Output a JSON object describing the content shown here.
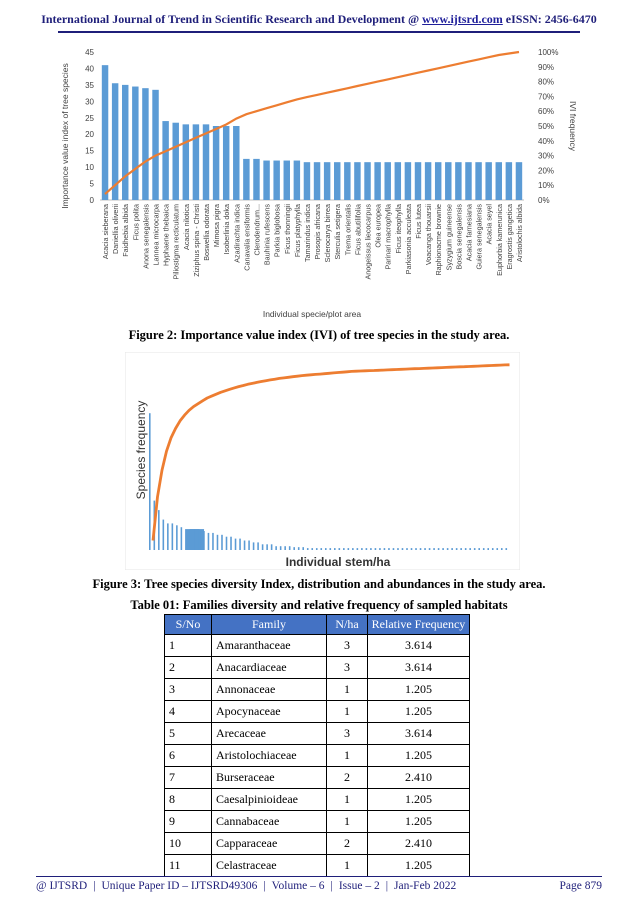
{
  "header": {
    "journal": "International Journal of Trend in Scientific Research and Development @",
    "website": "www.ijtsrd.com",
    "issn": "eISSN: 2456-6470"
  },
  "figure2": {
    "caption": "Figure 2: Importance value index (IVI) of tree species in the study area.",
    "chart_data": {
      "type": "bar",
      "title": "",
      "xlabel": "Individual specie/plot area",
      "ylabel": "Importance value index of tree species",
      "y2label": "IVI frequency",
      "ylim": [
        0,
        45
      ],
      "yticks": [
        "0",
        "5",
        "10",
        "15",
        "20",
        "25",
        "30",
        "35",
        "40",
        "45"
      ],
      "y2lim": [
        0,
        100
      ],
      "y2ticks": [
        "0%",
        "10%",
        "20%",
        "30%",
        "40%",
        "50%",
        "60%",
        "70%",
        "80%",
        "90%",
        "100%"
      ],
      "categories": [
        "Acacia sieberana",
        "Daniellia oliverii",
        "Faidhebia albida",
        "Ficus polita",
        "Anona senegalensis",
        "Lannea microcarpa",
        "Hyphaene thebaica",
        "Piliostigma recticulatum",
        "Acacia nilotica",
        "Ziziphus spina - Christi",
        "Boswellia odorata",
        "Mimosa pigra",
        "Isoberlinia doka",
        "Azadirachta indica",
        "Canavalia ensiformis",
        "Clerodendrum...",
        "Bauhinia rufescens",
        "Parkia biglobosa",
        "Ficus thonningii",
        "Ficus platyphylla",
        "Tamarindus indica",
        "Prosopis africana",
        "Sclerocarya birrea",
        "Sterculia setigera",
        "Trema orientalis",
        "Ficus abutilifolia",
        "Anogeissus liecocarpus",
        "Olea europea",
        "Parinari macrophylla",
        "Ficus iteophylla",
        "Parkiasonia acculeata",
        "Ficus lutea",
        "Voacanga thouarsii",
        "Raphionacme brownie",
        "Syzygium guineense",
        "Boscia senegalensis",
        "Acacia farnesiana",
        "Guiera senegalensis",
        "Acacia seyel",
        "Euphorbia kamerunica",
        "Eragrostis gangetica",
        "Aristolochis albida"
      ],
      "series": [
        {
          "type": "bar",
          "color": "#5b9bd5",
          "values": [
            41,
            35.5,
            35,
            34.5,
            34,
            33.5,
            24,
            23.5,
            23,
            23,
            23,
            22.5,
            22.5,
            22.5,
            12.5,
            12.5,
            12,
            12,
            12,
            12,
            11.5,
            11.5,
            11.5,
            11.5,
            11.5,
            11.5,
            11.5,
            11.5,
            11.5,
            11.5,
            11.5,
            11.5,
            11.5,
            11.5,
            11.5,
            11.5,
            11.5,
            11.5,
            11.5,
            11.5,
            11.5,
            11.5
          ]
        },
        {
          "type": "line",
          "axis": "right",
          "color": "#ed7d31",
          "values": [
            4,
            10,
            16,
            21,
            26,
            30,
            33,
            36,
            39,
            42,
            45,
            48,
            51,
            55,
            58,
            60,
            62,
            64,
            66,
            68,
            69.5,
            71,
            72.5,
            74,
            75.5,
            77,
            78.5,
            80,
            81.5,
            83,
            84.5,
            86,
            87.5,
            89,
            90.5,
            92,
            93.5,
            95,
            96.5,
            98,
            99,
            100
          ]
        }
      ]
    }
  },
  "figure3": {
    "caption": "Figure 3: Tree species diversity Index, distribution and abundances in the study area.",
    "chart_data": {
      "type": "bar",
      "title": "",
      "xlabel": "Individual stem/ha",
      "ylabel": "Species frequency",
      "ylim": [
        0,
        100
      ],
      "series": [
        {
          "type": "bar",
          "color": "#5b9bd5",
          "values": [
            72,
            26,
            21,
            16,
            14,
            14,
            13,
            12,
            11,
            11,
            11,
            10,
            10,
            9,
            9,
            8,
            8,
            7,
            7,
            6,
            6,
            5,
            5,
            4,
            4,
            3,
            3,
            3,
            2,
            2,
            2,
            2,
            1.5,
            1.5,
            1.5,
            1,
            1,
            1,
            1,
            1,
            1,
            1,
            1,
            1,
            1,
            1,
            1,
            1,
            1,
            1,
            1,
            1,
            1,
            1,
            1,
            1,
            1,
            1,
            1,
            1,
            1,
            1,
            1,
            1,
            1,
            1,
            1,
            1,
            1,
            1,
            1,
            1,
            1,
            1,
            1,
            1,
            1,
            1,
            1,
            1
          ]
        },
        {
          "type": "line",
          "color": "#ed7d31",
          "values": [
            5,
            28,
            42,
            52,
            59,
            64,
            68,
            71,
            73.5,
            75.5,
            77,
            78.5,
            80,
            81,
            82,
            83,
            83.8,
            84.6,
            85.3,
            86,
            86.6,
            87.2,
            87.7,
            88.2,
            88.7,
            89.1,
            89.5,
            89.9,
            90.3,
            90.6,
            90.9,
            91.2,
            91.5,
            91.8,
            92,
            92.2,
            92.4,
            92.6,
            92.8,
            93,
            93.2,
            93.4,
            93.6,
            93.8,
            94,
            94.1,
            94.2,
            94.3,
            94.4,
            94.5,
            94.6,
            94.7,
            94.8,
            94.9,
            95,
            95.1,
            95.2,
            95.3,
            95.4,
            95.5,
            95.6,
            95.7,
            95.8,
            95.9,
            96,
            96.1,
            96.2,
            96.3,
            96.4,
            96.5,
            96.6,
            96.7,
            96.8,
            96.9,
            97,
            97.1,
            97.2,
            97.3,
            97.4,
            97.5
          ]
        }
      ]
    }
  },
  "table": {
    "caption": "Table 01: Families diversity and relative frequency of sampled habitats",
    "headers": [
      "S/No",
      "Family",
      "N/ha",
      "Relative Frequency"
    ],
    "rows": [
      [
        "1",
        "Amaranthaceae",
        "3",
        "3.614"
      ],
      [
        "2",
        "Anacardiaceae",
        "3",
        "3.614"
      ],
      [
        "3",
        "Annonaceae",
        "1",
        "1.205"
      ],
      [
        "4",
        "Apocynaceae",
        "1",
        "1.205"
      ],
      [
        "5",
        "Arecaceae",
        "3",
        "3.614"
      ],
      [
        "6",
        "Aristolochiaceae",
        "1",
        "1.205"
      ],
      [
        "7",
        "Burseraceae",
        "2",
        "2.410"
      ],
      [
        "8",
        "Caesalpinioideae",
        "1",
        "1.205"
      ],
      [
        "9",
        "Cannabaceae",
        "1",
        "1.205"
      ],
      [
        "10",
        "Capparaceae",
        "2",
        "2.410"
      ],
      [
        "11",
        "Celastraceae",
        "1",
        "1.205"
      ]
    ]
  },
  "footer": {
    "journal": "@ IJTSRD",
    "id": "Unique Paper ID – IJTSRD49306",
    "volume": "Volume – 6",
    "issue": "Issue – 2",
    "date": "Jan-Feb 2022",
    "page": "Page 879"
  }
}
